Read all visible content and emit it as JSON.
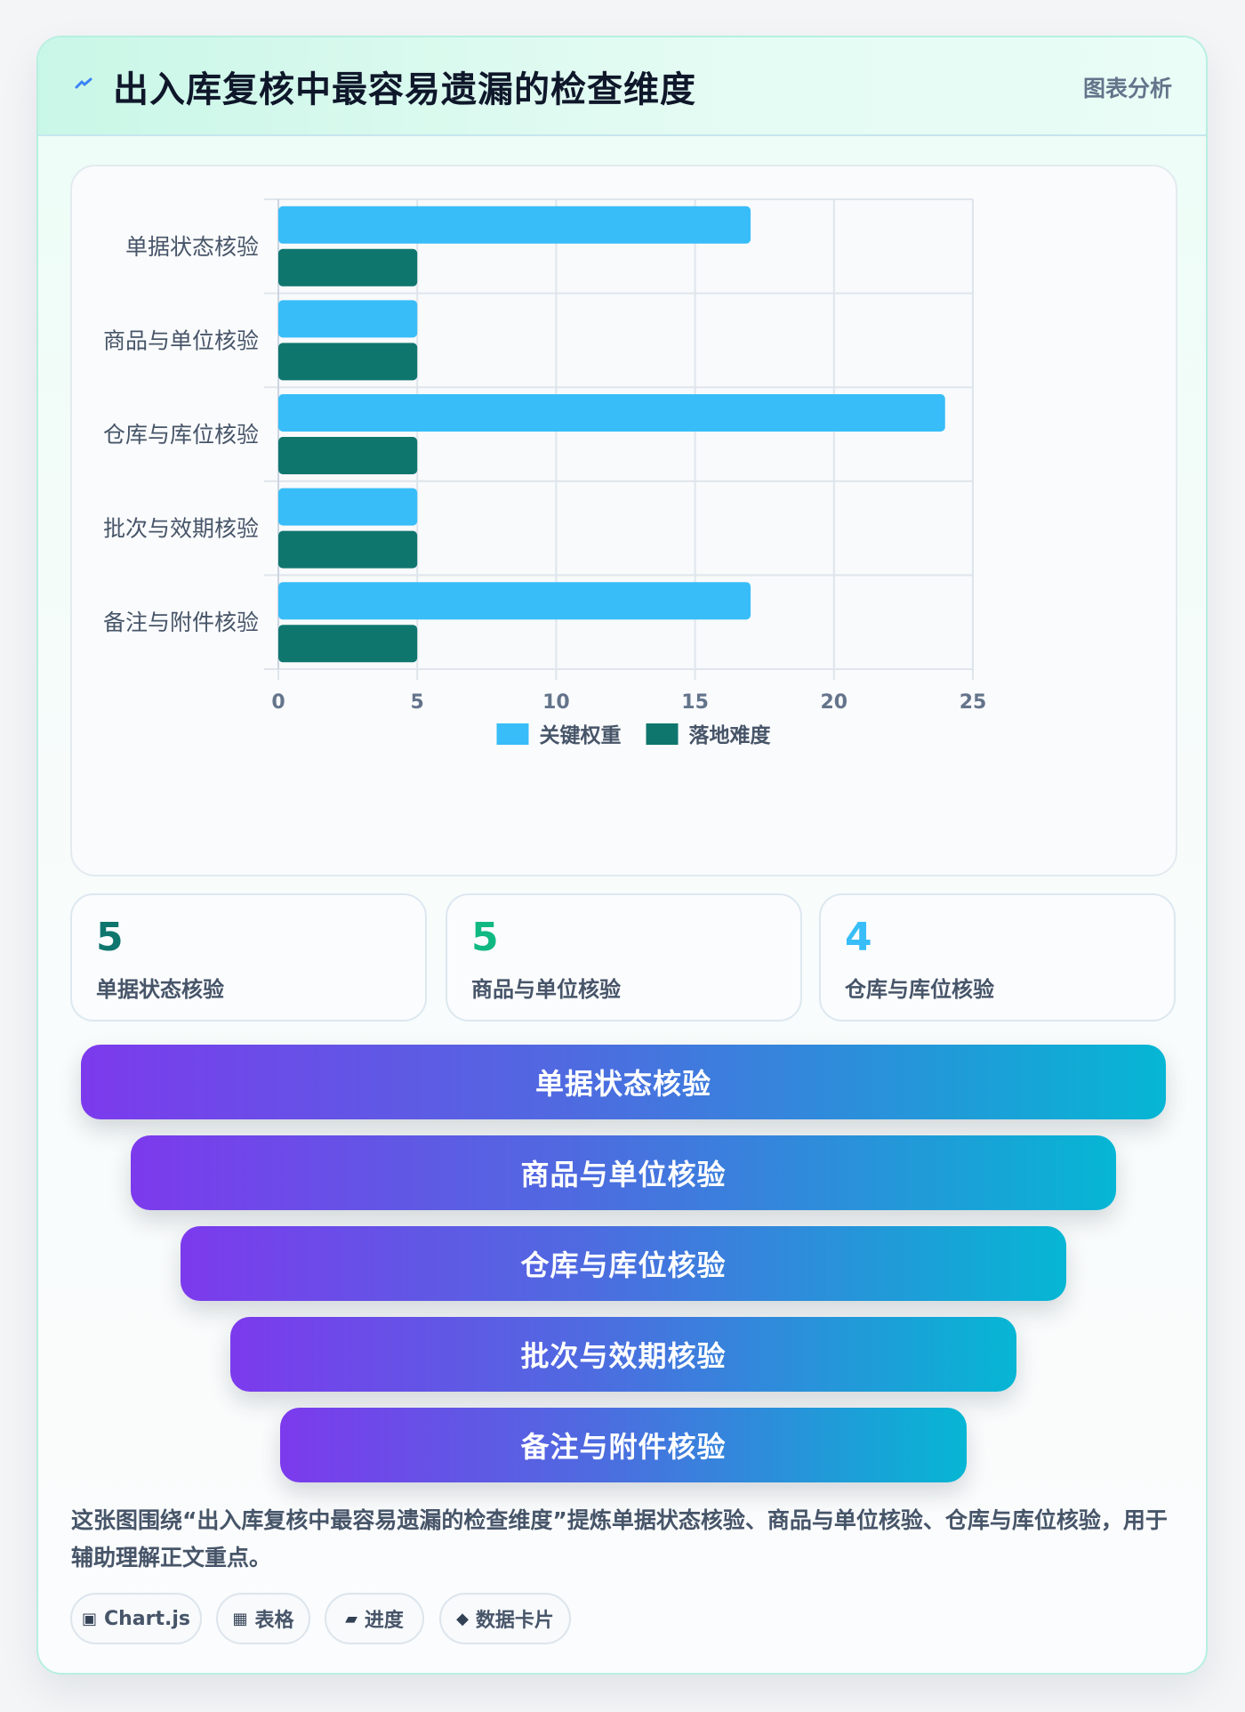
{
  "header": {
    "title": "出入库复核中最容易遗漏的检查维度",
    "meta": "图表分析"
  },
  "chart_data": {
    "type": "bar",
    "orientation": "horizontal",
    "categories": [
      "单据状态核验",
      "商品与单位核验",
      "仓库与库位核验",
      "批次与效期核验",
      "备注与附件核验"
    ],
    "series": [
      {
        "name": "关键权重",
        "color": "#38bdf8",
        "values": [
          17,
          5,
          24,
          5,
          17
        ]
      },
      {
        "name": "落地难度",
        "color": "#0f766e",
        "values": [
          5,
          5,
          5,
          5,
          5
        ]
      }
    ],
    "xlim": [
      0,
      25
    ],
    "x_ticks": [
      0,
      5,
      10,
      15,
      20,
      25
    ],
    "grid": true,
    "legend_position": "bottom"
  },
  "stats": [
    {
      "value": "5",
      "label": "单据状态核验",
      "color": "#0f766e"
    },
    {
      "value": "5",
      "label": "商品与单位核验",
      "color": "#10b981"
    },
    {
      "value": "4",
      "label": "仓库与库位核验",
      "color": "#38bdf8"
    }
  ],
  "funnel": [
    "单据状态核验",
    "商品与单位核验",
    "仓库与库位核验",
    "批次与效期核验",
    "备注与附件核验"
  ],
  "description": "这张图围绕“出入库复核中最容易遗漏的检查维度”提炼单据状态核验、商品与单位核验、仓库与库位核验，用于辅助理解正文重点。",
  "tags": [
    {
      "icon": "▣",
      "label": "Chart.js"
    },
    {
      "icon": "▦",
      "label": "表格"
    },
    {
      "icon": "▰",
      "label": "进度"
    },
    {
      "icon": "◆",
      "label": "数据卡片"
    }
  ],
  "icons": {
    "header": "lightning-icon"
  }
}
